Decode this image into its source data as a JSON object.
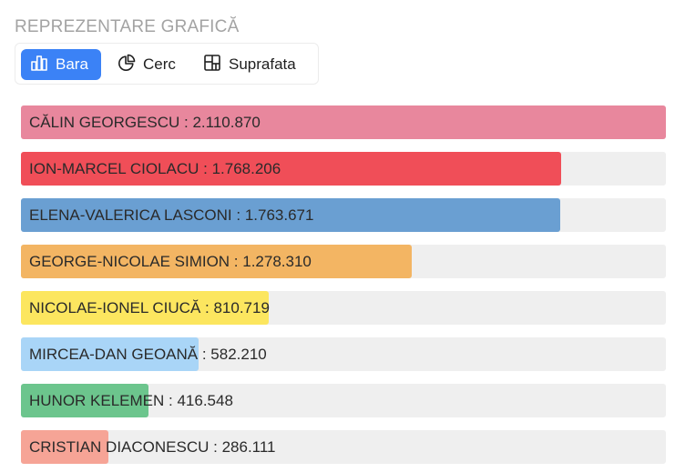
{
  "section_title": "REPREZENTARE GRAFICĂ",
  "tabs": [
    {
      "label": "Bara",
      "icon": "bar-chart-icon",
      "active": true
    },
    {
      "label": "Cerc",
      "icon": "pie-chart-icon",
      "active": false
    },
    {
      "label": "Suprafata",
      "icon": "treemap-icon",
      "active": false
    }
  ],
  "colors": {
    "accent": "#3b82f6",
    "track": "#efefef"
  },
  "chart_data": {
    "type": "bar",
    "orientation": "horizontal",
    "xlim": [
      0,
      2110870
    ],
    "categories": [
      "CĂLIN GEORGESCU",
      "ION-MARCEL CIOLACU",
      "ELENA-VALERICA LASCONI",
      "GEORGE-NICOLAE SIMION",
      "NICOLAE-IONEL CIUCĂ",
      "MIRCEA-DAN GEOANĂ",
      "HUNOR KELEMEN",
      "CRISTIAN DIACONESCU"
    ],
    "values": [
      2110870,
      1768206,
      1763671,
      1278310,
      810719,
      582210,
      416548,
      286111
    ],
    "labels": [
      "CĂLIN GEORGESCU : 2.110.870",
      "ION-MARCEL CIOLACU : 1.768.206",
      "ELENA-VALERICA LASCONI : 1.763.671",
      "GEORGE-NICOLAE SIMION : 1.278.310",
      "NICOLAE-IONEL CIUCĂ : 810.719",
      "MIRCEA-DAN GEOANĂ : 582.210",
      "HUNOR KELEMEN : 416.548",
      "CRISTIAN DIACONESCU : 286.111"
    ],
    "colors": [
      "#e8879d",
      "#f04e58",
      "#6a9fd2",
      "#f3b563",
      "#fce65f",
      "#a9d5f7",
      "#6cc58d",
      "#f6a496"
    ]
  }
}
